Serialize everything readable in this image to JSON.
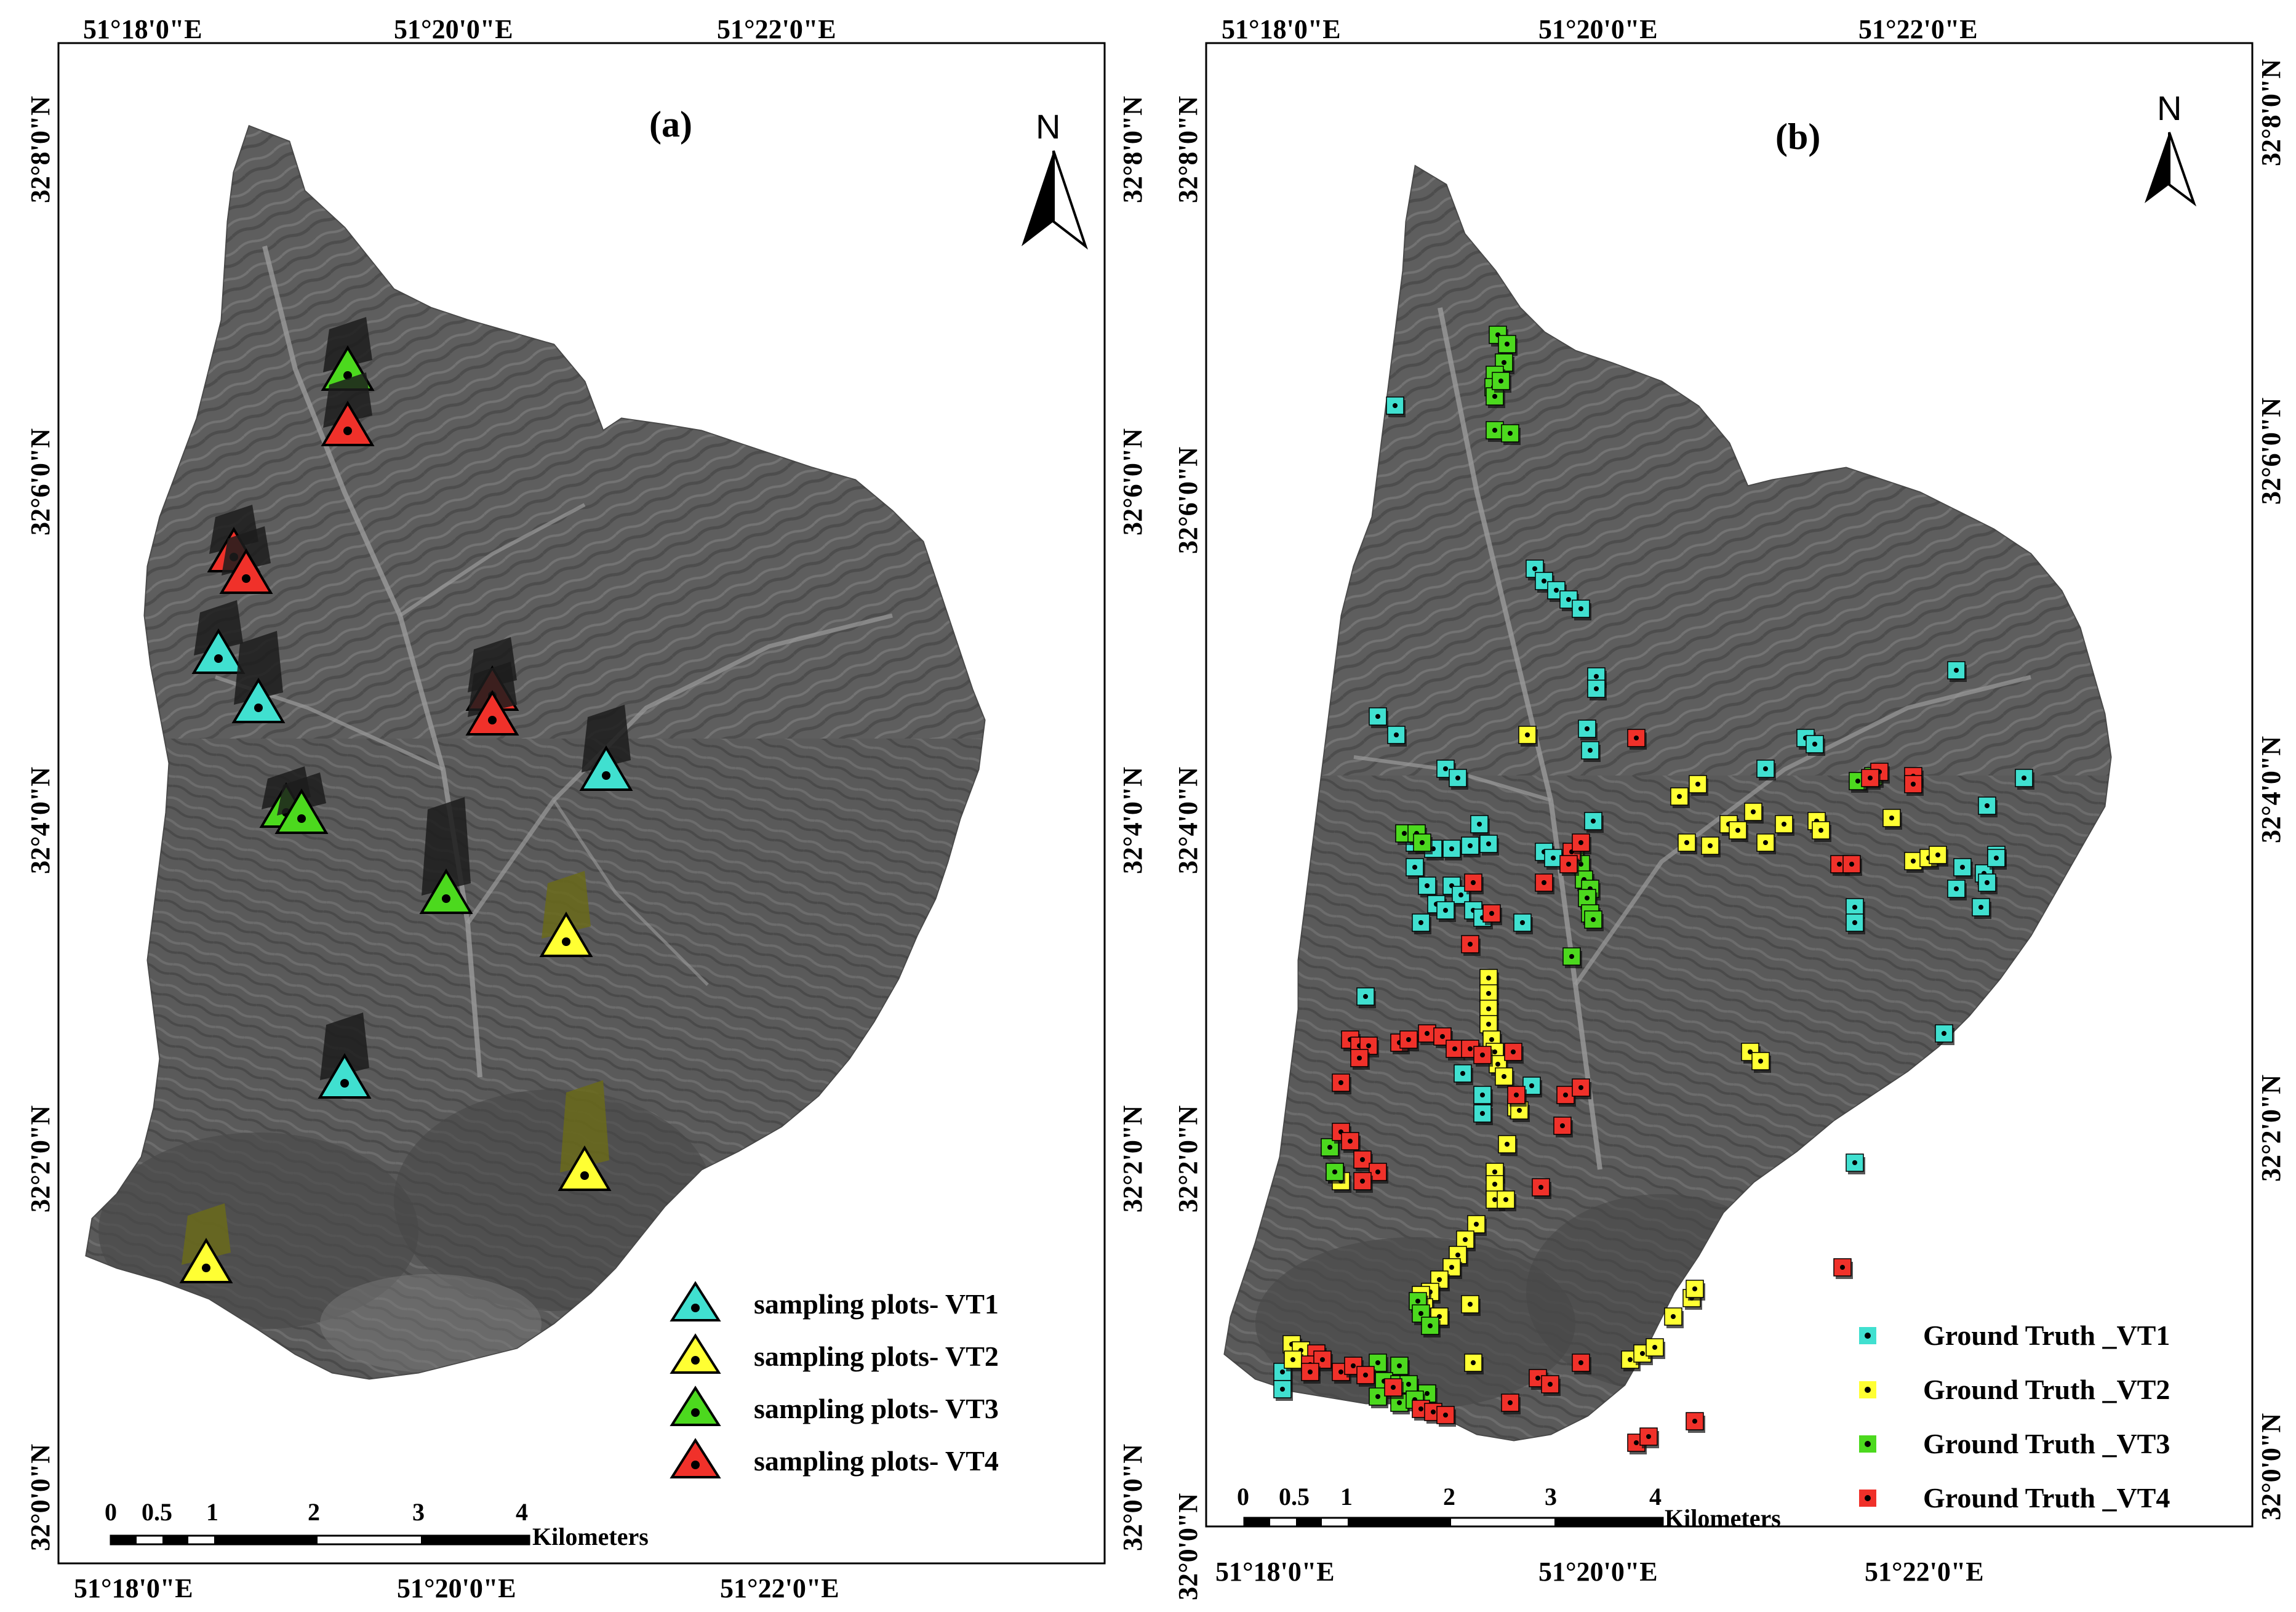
{
  "panels": {
    "a": {
      "label": "(a)",
      "north": "N",
      "top_lon": [
        "51°18'0\"E",
        "51°20'0\"E",
        "51°22'0\"E"
      ],
      "bottom_lon": [
        "51°18'0\"E",
        "51°20'0\"E",
        "51°22'0\"E"
      ],
      "left_lat": [
        "32°8'0\"N",
        "32°6'0\"N",
        "32°4'0\"N",
        "32°2'0\"N",
        "32°0'0\"N"
      ],
      "right_lat": [
        "32°8'0\"N",
        "32°6'0\"N",
        "32°4'0\"N",
        "32°2'0\"N",
        "32°0'0\"N"
      ],
      "scale": {
        "ticks": [
          "0",
          "0.5",
          "1",
          "2",
          "3",
          "4"
        ],
        "unit": "Kilometers"
      },
      "legend": [
        {
          "label": "sampling plots- VT1",
          "color": "#40e0d0"
        },
        {
          "label": "sampling plots- VT2",
          "color": "#ffff33"
        },
        {
          "label": "sampling plots- VT3",
          "color": "#4cd91e"
        },
        {
          "label": "sampling plots- VT4",
          "color": "#f0312a"
        }
      ]
    },
    "b": {
      "label": "(b)",
      "north": "N",
      "top_lon": [
        "51°18'0\"E",
        "51°20'0\"E",
        "51°22'0\"E"
      ],
      "bottom_lon": [
        "51°18'0\"E",
        "51°20'0\"E",
        "51°22'0\"E"
      ],
      "left_lat": [
        "32°8'0\"N",
        "32°6'0\"N",
        "32°4'0\"N",
        "32°2'0\"N",
        "32°0'0\"N"
      ],
      "right_lat": [
        "32°8'0\"N",
        "32°6'0\"N",
        "32°4'0\"N",
        "32°2'0\"N",
        "32°0'0\"N"
      ],
      "scale": {
        "ticks": [
          "0",
          "0.5",
          "1",
          "2",
          "3",
          "4"
        ],
        "unit": "Kilometers"
      },
      "legend": [
        {
          "label": "Ground Truth _VT1",
          "color": "#40e0d0"
        },
        {
          "label": "Ground Truth _VT2",
          "color": "#ffff33"
        },
        {
          "label": "Ground Truth _VT3",
          "color": "#4cd91e"
        },
        {
          "label": "Ground Truth _VT4",
          "color": "#f0312a"
        }
      ]
    }
  },
  "colors": {
    "basin": "#5c5c5c",
    "basin_dark": "#3a3a3a",
    "outline": "#222222"
  }
}
